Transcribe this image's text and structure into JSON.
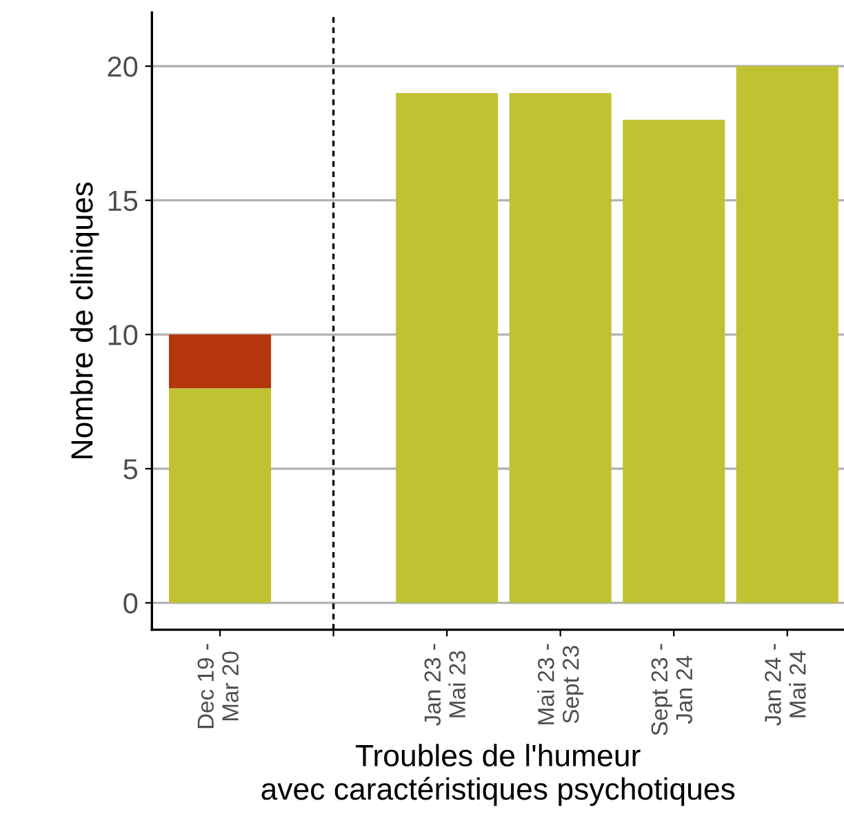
{
  "chart_data": {
    "type": "bar",
    "stacked": true,
    "xlabel": "Troubles de l'humeur\navec caractéristiques psychotiques",
    "ylabel": "Nombre de cliniques",
    "categories": [
      "Dec 19 -\nMar 20",
      null,
      "Jan 23 -\nMai 23",
      "Mai 23 -\nSept 23",
      "Sept 23 -\nJan 24",
      "Jan 24 -\nMai 24"
    ],
    "series": [
      {
        "color": "#c0c232",
        "values": [
          8,
          null,
          19,
          19,
          18,
          20
        ]
      },
      {
        "color": "#b5360b",
        "values": [
          2,
          null,
          null,
          null,
          null,
          null
        ]
      }
    ],
    "ylim": [
      -1,
      22
    ],
    "yticks": [
      0,
      5,
      10,
      15,
      20
    ],
    "grid": "y",
    "legend": false
  }
}
